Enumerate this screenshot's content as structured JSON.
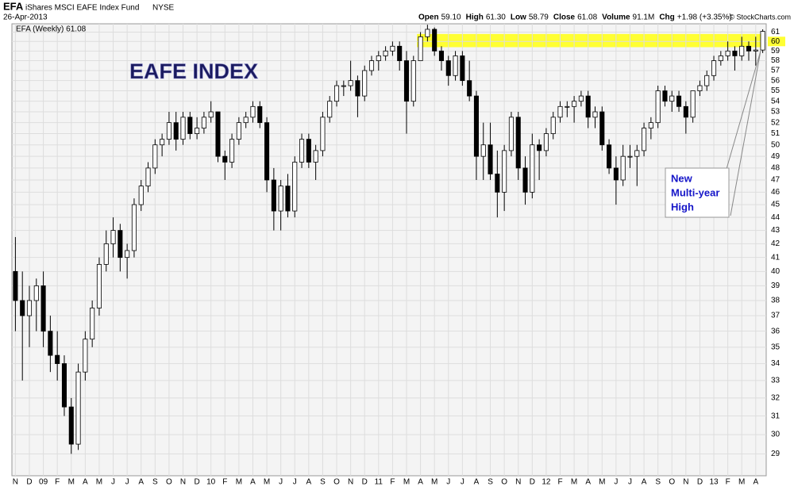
{
  "header": {
    "symbol": "EFA",
    "name": "iShares MSCI EAFE Index Fund",
    "exchange": "NYSE",
    "date": "26-Apr-2013",
    "quote": [
      {
        "label": "Open",
        "value": "59.10"
      },
      {
        "label": "High",
        "value": "61.30"
      },
      {
        "label": "Low",
        "value": "58.79"
      },
      {
        "label": "Close",
        "value": "61.08"
      },
      {
        "label": "Volume",
        "value": "91.1M"
      },
      {
        "label": "Chg",
        "value": "+1.98 (+3.35%)"
      }
    ],
    "credit": "© StockCharts.com"
  },
  "chart_data": {
    "type": "candlestick",
    "legend": "EFA (Weekly) 61.08",
    "title": "EAFE INDEX",
    "annotation": [
      "New",
      "Multi-year",
      "High"
    ],
    "log_scale": true,
    "grid": true,
    "up_color": "#ffffff",
    "down_color": "#000000",
    "band_color": "#ffff33",
    "band": [
      59.4,
      60.8
    ],
    "ylim": [
      27.9,
      61.9
    ],
    "yticks": [
      29,
      30,
      31,
      32,
      33,
      34,
      35,
      36,
      37,
      38,
      39,
      40,
      41,
      42,
      43,
      44,
      45,
      46,
      47,
      48,
      49,
      50,
      51,
      52,
      53,
      54,
      55,
      56,
      57,
      58,
      59,
      60,
      61
    ],
    "categories": [
      "N",
      null,
      "D",
      null,
      "09",
      null,
      "F",
      null,
      "M",
      null,
      "A",
      null,
      "M",
      null,
      "J",
      null,
      "J",
      null,
      "A",
      null,
      "S",
      null,
      "O",
      null,
      "N",
      null,
      "D",
      null,
      "10",
      null,
      "F",
      null,
      "M",
      null,
      "A",
      null,
      "M",
      null,
      "J",
      null,
      "J",
      null,
      "A",
      null,
      "S",
      null,
      "O",
      null,
      "N",
      null,
      "D",
      null,
      "11",
      null,
      "F",
      null,
      "M",
      null,
      "A",
      null,
      "M",
      null,
      "J",
      null,
      "J",
      null,
      "A",
      null,
      "S",
      null,
      "O",
      null,
      "N",
      null,
      "D",
      null,
      "12",
      null,
      "F",
      null,
      "M",
      null,
      "A",
      null,
      "M",
      null,
      "J",
      null,
      "J",
      null,
      "A",
      null,
      "S",
      null,
      "O",
      null,
      "N",
      null,
      "D",
      null,
      "13",
      null,
      "F",
      null,
      "M",
      null,
      "A",
      null
    ],
    "open": [
      40,
      38,
      37,
      38,
      39,
      36,
      34.5,
      34,
      31.5,
      29.5,
      33.5,
      35.5,
      37.5,
      40.5,
      42,
      43,
      41,
      41.5,
      45,
      46.5,
      48,
      50,
      50.5,
      52,
      50.5,
      52.5,
      51,
      51.5,
      52.5,
      53,
      49,
      48.5,
      50.5,
      52,
      52.5,
      53.5,
      52,
      47,
      44.5,
      46.5,
      44.5,
      48.5,
      50.5,
      48.5,
      49.5,
      52.5,
      54,
      55.5,
      55.5,
      56,
      54.5,
      57,
      58,
      58.5,
      59,
      59.5,
      58,
      54,
      58,
      60.5,
      61.3,
      59,
      58,
      56.5,
      58.5,
      56,
      54.5,
      49,
      50,
      47.5,
      46,
      49.5,
      52.5,
      48,
      46,
      50,
      49.5,
      51,
      52.5,
      53.5,
      53.5,
      54,
      54.5,
      52.5,
      53,
      50,
      48,
      47,
      49,
      49,
      49.5,
      51.5,
      52,
      55,
      54,
      54.5,
      53.5,
      52.5,
      55,
      55.5,
      56.5,
      58,
      58.5,
      59,
      58.5,
      59.5,
      59,
      59.1
    ],
    "high": [
      42.5,
      40,
      39,
      39.5,
      40,
      37,
      36,
      34.5,
      32,
      34,
      36,
      38,
      41,
      43,
      44,
      43.5,
      42,
      45.5,
      47,
      48.5,
      50.5,
      51,
      53,
      53,
      53,
      53,
      52.5,
      53,
      54,
      53,
      49.5,
      51,
      52.5,
      53,
      54,
      54,
      52.5,
      48,
      47,
      47.5,
      49,
      51,
      51,
      50,
      53,
      54.5,
      56,
      56,
      58,
      56.5,
      57.5,
      58.5,
      59,
      59.5,
      60,
      60,
      59,
      58.5,
      61,
      61.8,
      61.5,
      59.5,
      58.5,
      59,
      59,
      58,
      55,
      52,
      52,
      49.5,
      50,
      53,
      53,
      49,
      51,
      50.5,
      51.5,
      53,
      54,
      54,
      54.5,
      55,
      55,
      53.5,
      53.5,
      50.5,
      49,
      50,
      50,
      50,
      52,
      52.5,
      55.5,
      55.5,
      55,
      55,
      54,
      55,
      56,
      57,
      58.5,
      59,
      60,
      59.5,
      60.5,
      60,
      60.5,
      61.3
    ],
    "low": [
      36,
      33,
      35,
      36,
      35,
      33.5,
      33,
      31,
      29,
      29.2,
      33,
      35,
      37,
      40,
      41,
      40,
      39.5,
      41,
      44.5,
      46,
      47.5,
      49,
      50,
      49.5,
      50,
      50.5,
      50.5,
      51,
      52,
      48.5,
      47,
      48,
      50,
      51.5,
      52,
      51.5,
      46,
      43,
      43,
      44,
      44,
      48,
      48,
      47,
      49,
      52,
      53.5,
      54.5,
      55,
      52.5,
      54,
      56.5,
      57,
      58,
      58.5,
      57,
      51,
      53.5,
      58,
      60,
      58.5,
      57,
      55.5,
      56,
      55.5,
      54,
      47,
      47,
      47,
      44,
      44.5,
      49,
      47,
      45,
      45.5,
      47,
      49,
      50.5,
      52,
      52.5,
      52,
      53.5,
      51.5,
      51.5,
      49.5,
      47.5,
      45,
      46.5,
      48,
      46.5,
      49,
      50.5,
      51.5,
      53.5,
      53,
      53,
      51,
      52,
      54.5,
      55,
      56,
      57.5,
      58,
      57,
      58,
      58,
      57.5,
      58.79
    ],
    "close": [
      38,
      37,
      38,
      39,
      36,
      34.5,
      34,
      31.5,
      29.5,
      33.5,
      35.5,
      37.5,
      40.5,
      42,
      43,
      41,
      41.5,
      45,
      46.5,
      48,
      50,
      50.5,
      52,
      50.5,
      52.5,
      51,
      51.5,
      52.5,
      53,
      49,
      48.5,
      50.5,
      52,
      52.5,
      53.5,
      52,
      47,
      44.5,
      46.5,
      44.5,
      48.5,
      50.5,
      48.5,
      49.5,
      52.5,
      54,
      55.5,
      55.5,
      56,
      54.5,
      57,
      58,
      58.5,
      59,
      59.5,
      58,
      54,
      58,
      60.5,
      61.3,
      59,
      58,
      56.5,
      58.5,
      56,
      54.5,
      49,
      50,
      47.5,
      46,
      49.5,
      52.5,
      48,
      46,
      50,
      49.5,
      51,
      52.5,
      53.5,
      53.5,
      54,
      54.5,
      52.5,
      53,
      50,
      48,
      47,
      49,
      49,
      49.5,
      51.5,
      52,
      55,
      54,
      54.5,
      53.5,
      52.5,
      55,
      55.5,
      56.5,
      58,
      58.5,
      59,
      58.5,
      59.5,
      59,
      59.1,
      61.08
    ]
  }
}
